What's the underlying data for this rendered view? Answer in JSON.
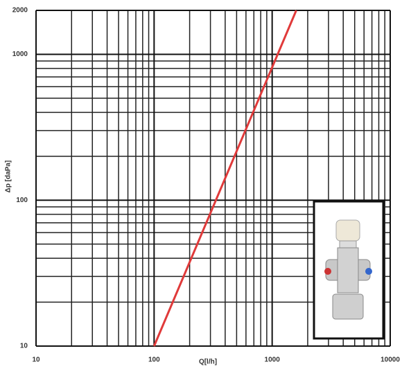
{
  "chart_data": {
    "type": "line",
    "x_label": "Q[l/h]",
    "y_label": "Δp [daPa]",
    "xlog": true,
    "ylog": true,
    "grid": true,
    "xlim": [
      10,
      10000
    ],
    "ylim": [
      10,
      2000
    ],
    "xticks": [
      10,
      100,
      1000,
      10000
    ],
    "yticks": [
      10,
      100,
      1000,
      2000
    ],
    "series": [
      {
        "color": "#e03a3a",
        "x": [
          100,
          1600
        ],
        "values": [
          10,
          2000
        ]
      }
    ]
  }
}
